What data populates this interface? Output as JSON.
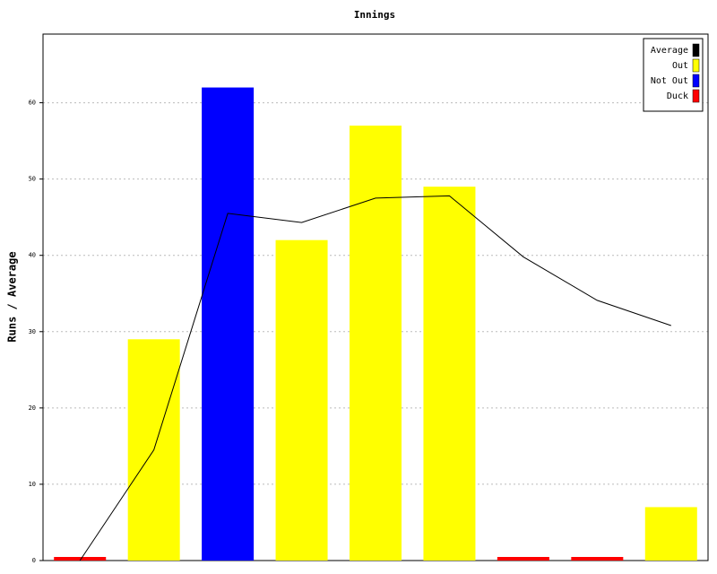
{
  "chart_data": {
    "type": "bar",
    "title": "Innings",
    "y_label": "Runs / Average",
    "categories": [
      null,
      null,
      null,
      null,
      null,
      null,
      null,
      null,
      null
    ],
    "ylim": [
      0,
      69
    ],
    "yticks": [
      0,
      10,
      20,
      30,
      40,
      50,
      60
    ],
    "grid": true,
    "legend": "top-right",
    "series": [
      {
        "name": "Average",
        "color": "#000000",
        "type": "line",
        "values": [
          0,
          14.5,
          45.5,
          44.3,
          47.5,
          47.8,
          39.8,
          34.1,
          30.8
        ]
      },
      {
        "name": "Out",
        "color": "#ffff00",
        "type": "bar",
        "values": [
          null,
          29,
          null,
          42,
          57,
          49,
          null,
          null,
          7
        ]
      },
      {
        "name": "Not Out",
        "color": "#0000ff",
        "type": "bar",
        "values": [
          null,
          null,
          62,
          null,
          null,
          null,
          null,
          null,
          null
        ]
      },
      {
        "name": "Duck",
        "color": "#ff0000",
        "type": "bar",
        "values": [
          0,
          null,
          null,
          null,
          null,
          null,
          0,
          0,
          null
        ]
      }
    ]
  }
}
